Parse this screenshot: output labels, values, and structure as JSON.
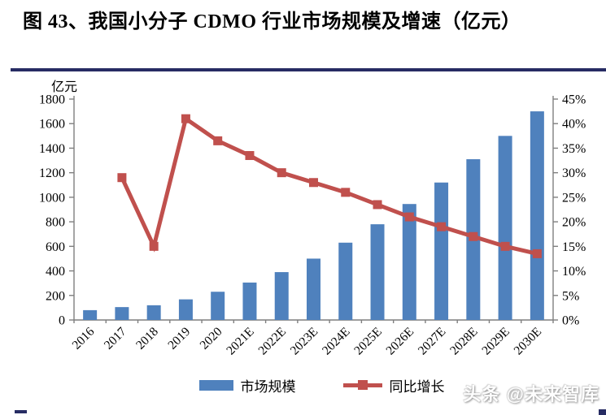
{
  "chart_data": {
    "type": "bar",
    "title": "图 43、我国小分子 CDMO 行业市场规模及增速（亿元）",
    "categories": [
      "2016",
      "2017",
      "2018",
      "2019",
      "2020",
      "2021E",
      "2022E",
      "2023E",
      "2024E",
      "2025E",
      "2026E",
      "2027E",
      "2028E",
      "2029E",
      "2030E"
    ],
    "series": [
      {
        "name": "市场规模",
        "type": "bar",
        "axis": "left",
        "color": "#4f81bd",
        "values": [
          80,
          105,
          120,
          168,
          230,
          305,
          390,
          500,
          630,
          780,
          945,
          1120,
          1310,
          1500,
          1700
        ]
      },
      {
        "name": "同比增长",
        "type": "line",
        "axis": "right",
        "color": "#c0504d",
        "marker": "square",
        "values": [
          null,
          29,
          15,
          41,
          36.5,
          33.5,
          30,
          28,
          26,
          23.5,
          21,
          19,
          17,
          15,
          13.5
        ]
      }
    ],
    "left_axis": {
      "label": "亿元",
      "min": 0,
      "max": 1800,
      "step": 200
    },
    "right_axis": {
      "min": 0,
      "max": 45,
      "step": 5,
      "unit": "%"
    },
    "grid": false,
    "legend_position": "bottom"
  },
  "watermark": {
    "text": "头条 @未来智库"
  },
  "colors": {
    "bar": "#4f81bd",
    "line": "#c0504d",
    "rule": "#272c63",
    "axis": "#7f7f7f"
  }
}
